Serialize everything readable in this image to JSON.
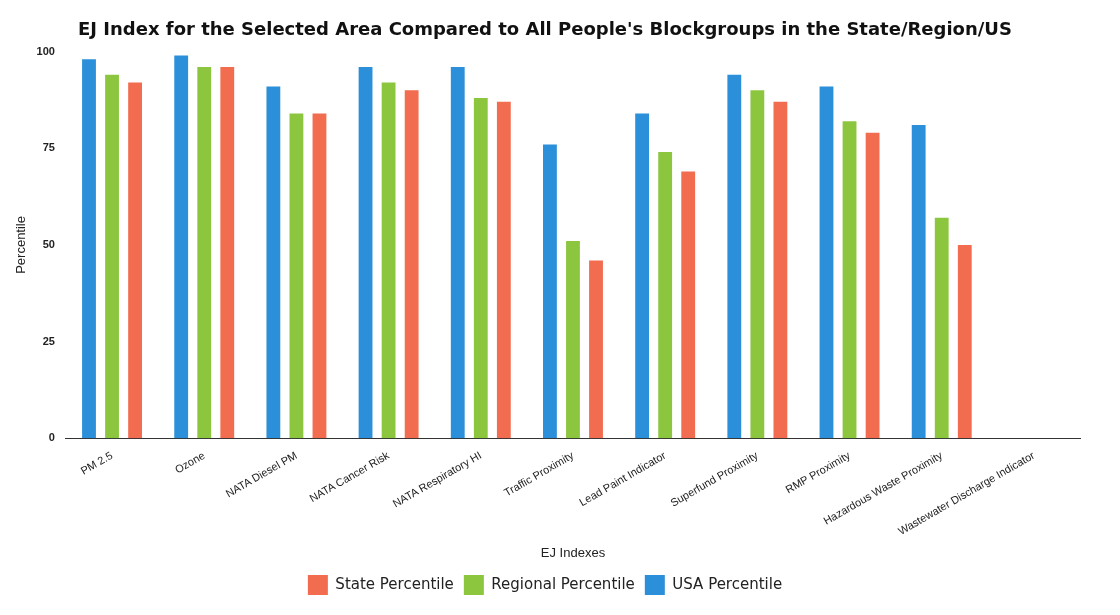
{
  "chart_data": {
    "type": "bar",
    "title": "EJ Index for the Selected Area Compared to All People's Blockgroups in the State/Region/US",
    "xlabel": "EJ Indexes",
    "ylabel": "Percentile",
    "categories": [
      "PM 2.5",
      "Ozone",
      "NATA Diesel PM",
      "NATA Cancer Risk",
      "NATA Respiratory HI",
      "Traffic Proximity",
      "Lead Paint Indicator",
      "Superfund Proximity",
      "RMP Proximity",
      "Hazardous Waste Proximity",
      "Wastewater Discharge Indicator"
    ],
    "series": [
      {
        "name": "USA Percentile",
        "color": "#2b8fd9",
        "values": [
          98,
          99,
          91,
          96,
          96,
          76,
          84,
          94,
          91,
          81,
          0
        ]
      },
      {
        "name": "Regional Percentile",
        "color": "#8cc63f",
        "values": [
          94,
          96,
          84,
          92,
          88,
          51,
          74,
          90,
          82,
          57,
          0
        ]
      },
      {
        "name": "State Percentile",
        "color": "#f26c4f",
        "values": [
          92,
          96,
          84,
          90,
          87,
          46,
          69,
          87,
          79,
          50,
          0
        ]
      }
    ],
    "ylim": [
      0,
      100
    ],
    "yticks": [
      0,
      25,
      50,
      75,
      100
    ],
    "grid": false,
    "legend": "bottom"
  }
}
